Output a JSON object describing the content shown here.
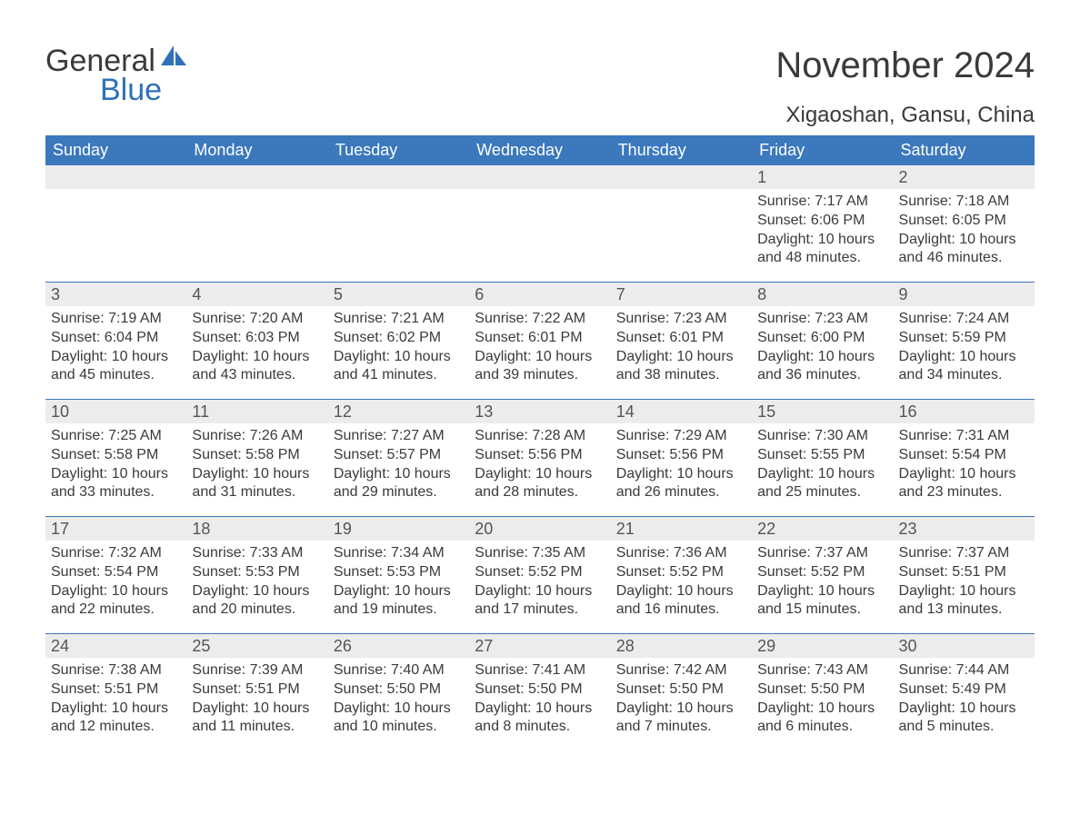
{
  "brand": {
    "word1": "General",
    "word2": "Blue",
    "sail_color": "#2f71b8"
  },
  "title": "November 2024",
  "location": "Xigaoshan, Gansu, China",
  "colors": {
    "header_bg": "#3b78bc",
    "header_text": "#ffffff",
    "row_border": "#3b78bc",
    "daynum_bg": "#ececec",
    "body_text": "#3a3a3a"
  },
  "typography": {
    "title_fontsize": 40,
    "location_fontsize": 24,
    "header_fontsize": 18,
    "daynum_fontsize": 18,
    "body_fontsize": 16
  },
  "weekdays": [
    "Sunday",
    "Monday",
    "Tuesday",
    "Wednesday",
    "Thursday",
    "Friday",
    "Saturday"
  ],
  "weeks": [
    [
      null,
      null,
      null,
      null,
      null,
      {
        "n": "1",
        "sunrise": "7:17 AM",
        "sunset": "6:06 PM",
        "daylight": "10 hours and 48 minutes."
      },
      {
        "n": "2",
        "sunrise": "7:18 AM",
        "sunset": "6:05 PM",
        "daylight": "10 hours and 46 minutes."
      }
    ],
    [
      {
        "n": "3",
        "sunrise": "7:19 AM",
        "sunset": "6:04 PM",
        "daylight": "10 hours and 45 minutes."
      },
      {
        "n": "4",
        "sunrise": "7:20 AM",
        "sunset": "6:03 PM",
        "daylight": "10 hours and 43 minutes."
      },
      {
        "n": "5",
        "sunrise": "7:21 AM",
        "sunset": "6:02 PM",
        "daylight": "10 hours and 41 minutes."
      },
      {
        "n": "6",
        "sunrise": "7:22 AM",
        "sunset": "6:01 PM",
        "daylight": "10 hours and 39 minutes."
      },
      {
        "n": "7",
        "sunrise": "7:23 AM",
        "sunset": "6:01 PM",
        "daylight": "10 hours and 38 minutes."
      },
      {
        "n": "8",
        "sunrise": "7:23 AM",
        "sunset": "6:00 PM",
        "daylight": "10 hours and 36 minutes."
      },
      {
        "n": "9",
        "sunrise": "7:24 AM",
        "sunset": "5:59 PM",
        "daylight": "10 hours and 34 minutes."
      }
    ],
    [
      {
        "n": "10",
        "sunrise": "7:25 AM",
        "sunset": "5:58 PM",
        "daylight": "10 hours and 33 minutes."
      },
      {
        "n": "11",
        "sunrise": "7:26 AM",
        "sunset": "5:58 PM",
        "daylight": "10 hours and 31 minutes."
      },
      {
        "n": "12",
        "sunrise": "7:27 AM",
        "sunset": "5:57 PM",
        "daylight": "10 hours and 29 minutes."
      },
      {
        "n": "13",
        "sunrise": "7:28 AM",
        "sunset": "5:56 PM",
        "daylight": "10 hours and 28 minutes."
      },
      {
        "n": "14",
        "sunrise": "7:29 AM",
        "sunset": "5:56 PM",
        "daylight": "10 hours and 26 minutes."
      },
      {
        "n": "15",
        "sunrise": "7:30 AM",
        "sunset": "5:55 PM",
        "daylight": "10 hours and 25 minutes."
      },
      {
        "n": "16",
        "sunrise": "7:31 AM",
        "sunset": "5:54 PM",
        "daylight": "10 hours and 23 minutes."
      }
    ],
    [
      {
        "n": "17",
        "sunrise": "7:32 AM",
        "sunset": "5:54 PM",
        "daylight": "10 hours and 22 minutes."
      },
      {
        "n": "18",
        "sunrise": "7:33 AM",
        "sunset": "5:53 PM",
        "daylight": "10 hours and 20 minutes."
      },
      {
        "n": "19",
        "sunrise": "7:34 AM",
        "sunset": "5:53 PM",
        "daylight": "10 hours and 19 minutes."
      },
      {
        "n": "20",
        "sunrise": "7:35 AM",
        "sunset": "5:52 PM",
        "daylight": "10 hours and 17 minutes."
      },
      {
        "n": "21",
        "sunrise": "7:36 AM",
        "sunset": "5:52 PM",
        "daylight": "10 hours and 16 minutes."
      },
      {
        "n": "22",
        "sunrise": "7:37 AM",
        "sunset": "5:52 PM",
        "daylight": "10 hours and 15 minutes."
      },
      {
        "n": "23",
        "sunrise": "7:37 AM",
        "sunset": "5:51 PM",
        "daylight": "10 hours and 13 minutes."
      }
    ],
    [
      {
        "n": "24",
        "sunrise": "7:38 AM",
        "sunset": "5:51 PM",
        "daylight": "10 hours and 12 minutes."
      },
      {
        "n": "25",
        "sunrise": "7:39 AM",
        "sunset": "5:51 PM",
        "daylight": "10 hours and 11 minutes."
      },
      {
        "n": "26",
        "sunrise": "7:40 AM",
        "sunset": "5:50 PM",
        "daylight": "10 hours and 10 minutes."
      },
      {
        "n": "27",
        "sunrise": "7:41 AM",
        "sunset": "5:50 PM",
        "daylight": "10 hours and 8 minutes."
      },
      {
        "n": "28",
        "sunrise": "7:42 AM",
        "sunset": "5:50 PM",
        "daylight": "10 hours and 7 minutes."
      },
      {
        "n": "29",
        "sunrise": "7:43 AM",
        "sunset": "5:50 PM",
        "daylight": "10 hours and 6 minutes."
      },
      {
        "n": "30",
        "sunrise": "7:44 AM",
        "sunset": "5:49 PM",
        "daylight": "10 hours and 5 minutes."
      }
    ]
  ],
  "labels": {
    "sunrise": "Sunrise: ",
    "sunset": "Sunset: ",
    "daylight": "Daylight: "
  }
}
